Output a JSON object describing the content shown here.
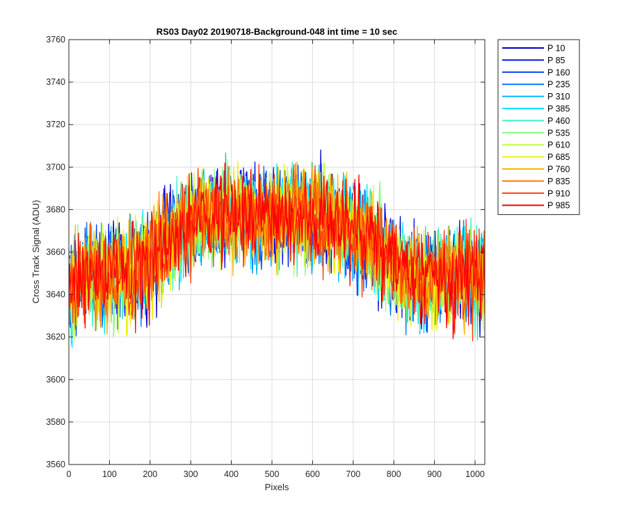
{
  "chart_data": {
    "type": "line",
    "title": "RS03 Day02 20190718-Background-048 int time = 10 sec",
    "xlabel": "Pixels",
    "ylabel": "Cross Track Signal (ADU)",
    "xlim": [
      0,
      1024
    ],
    "ylim": [
      3560,
      3760
    ],
    "xticks": [
      0,
      100,
      200,
      300,
      400,
      500,
      600,
      700,
      800,
      900,
      1000
    ],
    "yticks": [
      3560,
      3580,
      3600,
      3620,
      3640,
      3660,
      3680,
      3700,
      3720,
      3740,
      3760
    ],
    "grid": true,
    "legend_position": "outside-right",
    "x_points": [
      0,
      20,
      40,
      60,
      80,
      100,
      120,
      140,
      160,
      180,
      200,
      220,
      240,
      260,
      280,
      300,
      320,
      340,
      360,
      380,
      400,
      420,
      440,
      460,
      480,
      500,
      520,
      540,
      560,
      580,
      600,
      620,
      640,
      660,
      680,
      700,
      720,
      740,
      760,
      780,
      800,
      820,
      840,
      860,
      880,
      900,
      920,
      940,
      960,
      980,
      1000,
      1024
    ],
    "series_note_values_are_mean_profile": true,
    "series": [
      {
        "name": "P 10",
        "color": "#0000c8",
        "values": [
          3642,
          3645,
          3648,
          3650,
          3646,
          3649,
          3651,
          3648,
          3650,
          3652,
          3655,
          3660,
          3664,
          3668,
          3671,
          3673,
          3674,
          3676,
          3677,
          3676,
          3678,
          3677,
          3679,
          3676,
          3678,
          3677,
          3676,
          3678,
          3677,
          3676,
          3678,
          3676,
          3675,
          3674,
          3672,
          3670,
          3668,
          3665,
          3662,
          3658,
          3655,
          3652,
          3650,
          3648,
          3647,
          3649,
          3646,
          3648,
          3647,
          3649,
          3648,
          3650
        ]
      },
      {
        "name": "P 85",
        "color": "#0010e6",
        "values": [
          3641,
          3646,
          3647,
          3651,
          3647,
          3650,
          3650,
          3647,
          3651,
          3653,
          3656,
          3661,
          3663,
          3669,
          3670,
          3674,
          3675,
          3675,
          3678,
          3677,
          3677,
          3678,
          3678,
          3677,
          3677,
          3678,
          3677,
          3677,
          3678,
          3677,
          3677,
          3677,
          3676,
          3673,
          3673,
          3669,
          3669,
          3664,
          3663,
          3657,
          3656,
          3651,
          3651,
          3647,
          3648,
          3648,
          3647,
          3647,
          3648,
          3648,
          3649,
          3649
        ]
      },
      {
        "name": "P 160",
        "color": "#0040ff",
        "values": [
          3643,
          3644,
          3649,
          3649,
          3648,
          3648,
          3652,
          3649,
          3649,
          3653,
          3654,
          3661,
          3665,
          3667,
          3672,
          3672,
          3675,
          3675,
          3676,
          3677,
          3679,
          3676,
          3678,
          3678,
          3679,
          3676,
          3678,
          3677,
          3676,
          3677,
          3677,
          3676,
          3674,
          3675,
          3671,
          3671,
          3667,
          3666,
          3661,
          3659,
          3654,
          3653,
          3649,
          3649,
          3646,
          3650,
          3645,
          3649,
          3646,
          3650,
          3647,
          3651
        ]
      },
      {
        "name": "P 235",
        "color": "#0078ff",
        "values": [
          3642,
          3646,
          3648,
          3650,
          3647,
          3649,
          3651,
          3648,
          3650,
          3652,
          3656,
          3660,
          3664,
          3668,
          3671,
          3673,
          3674,
          3676,
          3677,
          3676,
          3678,
          3677,
          3679,
          3676,
          3678,
          3677,
          3676,
          3678,
          3677,
          3676,
          3678,
          3676,
          3675,
          3674,
          3672,
          3670,
          3668,
          3665,
          3662,
          3658,
          3655,
          3652,
          3650,
          3648,
          3647,
          3649,
          3646,
          3648,
          3647,
          3649,
          3648,
          3650
        ]
      },
      {
        "name": "P 310",
        "color": "#00b4ff",
        "values": [
          3643,
          3645,
          3647,
          3650,
          3646,
          3649,
          3651,
          3648,
          3650,
          3652,
          3655,
          3660,
          3664,
          3668,
          3671,
          3673,
          3674,
          3676,
          3677,
          3676,
          3678,
          3677,
          3679,
          3676,
          3678,
          3677,
          3676,
          3678,
          3677,
          3676,
          3678,
          3676,
          3675,
          3674,
          3672,
          3670,
          3668,
          3665,
          3662,
          3658,
          3655,
          3652,
          3650,
          3648,
          3647,
          3649,
          3646,
          3648,
          3647,
          3649,
          3648,
          3650
        ]
      },
      {
        "name": "P 385",
        "color": "#00e6ff",
        "values": [
          3642,
          3645,
          3648,
          3651,
          3646,
          3649,
          3651,
          3648,
          3650,
          3652,
          3655,
          3660,
          3664,
          3668,
          3671,
          3673,
          3674,
          3676,
          3677,
          3676,
          3678,
          3677,
          3679,
          3676,
          3678,
          3677,
          3676,
          3678,
          3677,
          3676,
          3678,
          3676,
          3675,
          3674,
          3672,
          3670,
          3668,
          3665,
          3662,
          3658,
          3655,
          3652,
          3650,
          3648,
          3647,
          3649,
          3646,
          3648,
          3647,
          3649,
          3648,
          3650
        ]
      },
      {
        "name": "P 460",
        "color": "#40f0c8",
        "values": [
          3642,
          3645,
          3648,
          3650,
          3646,
          3649,
          3651,
          3648,
          3650,
          3652,
          3655,
          3660,
          3664,
          3668,
          3671,
          3673,
          3674,
          3676,
          3677,
          3676,
          3678,
          3677,
          3679,
          3676,
          3678,
          3677,
          3676,
          3678,
          3677,
          3676,
          3678,
          3676,
          3675,
          3674,
          3672,
          3670,
          3668,
          3665,
          3662,
          3658,
          3655,
          3652,
          3650,
          3648,
          3647,
          3649,
          3646,
          3648,
          3647,
          3649,
          3648,
          3650
        ]
      },
      {
        "name": "P 535",
        "color": "#80ff80",
        "values": [
          3642,
          3645,
          3648,
          3650,
          3646,
          3649,
          3651,
          3648,
          3650,
          3652,
          3655,
          3660,
          3664,
          3668,
          3671,
          3673,
          3674,
          3676,
          3677,
          3676,
          3678,
          3677,
          3679,
          3676,
          3678,
          3677,
          3676,
          3678,
          3677,
          3676,
          3678,
          3676,
          3675,
          3674,
          3672,
          3670,
          3668,
          3665,
          3662,
          3658,
          3655,
          3652,
          3650,
          3648,
          3647,
          3649,
          3646,
          3648,
          3647,
          3649,
          3648,
          3650
        ]
      },
      {
        "name": "P 610",
        "color": "#c0ff40",
        "values": [
          3642,
          3645,
          3648,
          3650,
          3646,
          3649,
          3651,
          3648,
          3650,
          3652,
          3655,
          3660,
          3664,
          3668,
          3671,
          3673,
          3674,
          3676,
          3677,
          3676,
          3678,
          3677,
          3679,
          3676,
          3678,
          3677,
          3676,
          3678,
          3677,
          3676,
          3678,
          3676,
          3675,
          3674,
          3672,
          3670,
          3668,
          3665,
          3662,
          3658,
          3655,
          3652,
          3650,
          3648,
          3647,
          3649,
          3646,
          3648,
          3647,
          3649,
          3648,
          3650
        ]
      },
      {
        "name": "P 685",
        "color": "#f0f000",
        "values": [
          3642,
          3645,
          3648,
          3650,
          3646,
          3649,
          3651,
          3648,
          3650,
          3652,
          3655,
          3660,
          3664,
          3668,
          3671,
          3673,
          3674,
          3676,
          3677,
          3676,
          3678,
          3677,
          3679,
          3676,
          3678,
          3677,
          3676,
          3678,
          3677,
          3676,
          3678,
          3676,
          3675,
          3674,
          3672,
          3670,
          3668,
          3665,
          3662,
          3658,
          3655,
          3652,
          3650,
          3648,
          3647,
          3649,
          3646,
          3648,
          3647,
          3649,
          3648,
          3650
        ]
      },
      {
        "name": "P 760",
        "color": "#ffb400",
        "values": [
          3642,
          3645,
          3648,
          3650,
          3646,
          3649,
          3651,
          3648,
          3650,
          3652,
          3655,
          3660,
          3664,
          3668,
          3671,
          3673,
          3674,
          3676,
          3677,
          3676,
          3678,
          3677,
          3679,
          3676,
          3678,
          3677,
          3676,
          3678,
          3677,
          3676,
          3678,
          3676,
          3675,
          3674,
          3672,
          3670,
          3668,
          3665,
          3662,
          3658,
          3655,
          3652,
          3650,
          3648,
          3647,
          3649,
          3646,
          3648,
          3647,
          3649,
          3648,
          3650
        ]
      },
      {
        "name": "P 835",
        "color": "#ff7800",
        "values": [
          3642,
          3645,
          3648,
          3650,
          3646,
          3649,
          3651,
          3648,
          3650,
          3652,
          3655,
          3660,
          3664,
          3668,
          3671,
          3673,
          3674,
          3676,
          3677,
          3676,
          3678,
          3677,
          3679,
          3676,
          3678,
          3677,
          3676,
          3678,
          3677,
          3676,
          3678,
          3676,
          3675,
          3674,
          3672,
          3670,
          3668,
          3665,
          3662,
          3658,
          3655,
          3652,
          3650,
          3648,
          3647,
          3649,
          3646,
          3648,
          3647,
          3649,
          3648,
          3650
        ]
      },
      {
        "name": "P 910",
        "color": "#ff3c00",
        "values": [
          3642,
          3645,
          3648,
          3650,
          3646,
          3649,
          3651,
          3648,
          3650,
          3652,
          3655,
          3660,
          3664,
          3668,
          3671,
          3673,
          3674,
          3676,
          3677,
          3676,
          3678,
          3677,
          3679,
          3676,
          3678,
          3677,
          3676,
          3678,
          3677,
          3676,
          3678,
          3676,
          3675,
          3674,
          3672,
          3670,
          3668,
          3665,
          3662,
          3658,
          3655,
          3652,
          3650,
          3648,
          3647,
          3649,
          3646,
          3648,
          3647,
          3649,
          3648,
          3650
        ]
      },
      {
        "name": "P 985",
        "color": "#ff0000",
        "values": [
          3642,
          3645,
          3648,
          3650,
          3646,
          3649,
          3651,
          3648,
          3650,
          3652,
          3655,
          3660,
          3664,
          3668,
          3671,
          3673,
          3674,
          3676,
          3677,
          3676,
          3678,
          3677,
          3679,
          3676,
          3678,
          3677,
          3676,
          3678,
          3677,
          3676,
          3678,
          3676,
          3675,
          3674,
          3672,
          3670,
          3668,
          3665,
          3662,
          3658,
          3655,
          3652,
          3650,
          3648,
          3647,
          3649,
          3646,
          3648,
          3647,
          3649,
          3648,
          3650
        ]
      }
    ]
  }
}
